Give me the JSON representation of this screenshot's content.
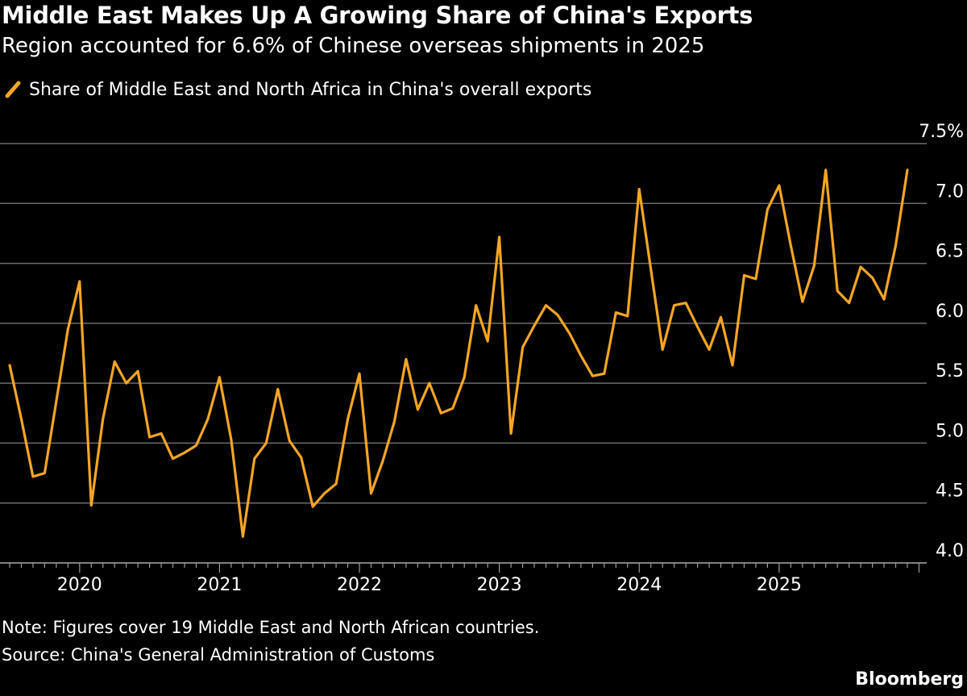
{
  "header": {
    "title": "Middle East Makes Up A Growing Share of China's Exports",
    "subtitle": "Region accounted for 6.6% of Chinese overseas shipments in 2025"
  },
  "legend": {
    "label": "Share of Middle East and North Africa in China's overall exports"
  },
  "footer": {
    "note": "Note: Figures cover 19 Middle East and North African countries.",
    "source": "Source: China's General Administration of Customs",
    "brand": "Bloomberg"
  },
  "colors": {
    "background": "#000000",
    "line": "#f5a623",
    "grid": "#6b6b6b",
    "text": "#ffffff"
  },
  "chart_data": {
    "type": "line",
    "y_tick_labels": [
      "7.5%",
      "7.0",
      "6.5",
      "6.0",
      "5.5",
      "5.0",
      "4.5",
      "4.0"
    ],
    "y_ticks": [
      7.5,
      7.0,
      6.5,
      6.0,
      5.5,
      5.0,
      4.5,
      4.0
    ],
    "x_tick_labels": [
      "2020",
      "2021",
      "2022",
      "2023",
      "2024",
      "2025"
    ],
    "ylim": [
      4.0,
      7.5
    ],
    "grid": true,
    "legend_placement": "top-left",
    "series": [
      {
        "name": "Share of Middle East and North Africa in China's overall exports",
        "points": [
          [
            "2019-07",
            5.65
          ],
          [
            "2019-08",
            5.2
          ],
          [
            "2019-09",
            4.72
          ],
          [
            "2019-10",
            4.75
          ],
          [
            "2019-11",
            5.35
          ],
          [
            "2019-12",
            5.95
          ],
          [
            "2020-01",
            6.35
          ],
          [
            "2020-02",
            4.48
          ],
          [
            "2020-03",
            5.2
          ],
          [
            "2020-04",
            5.68
          ],
          [
            "2020-05",
            5.5
          ],
          [
            "2020-06",
            5.6
          ],
          [
            "2020-07",
            5.05
          ],
          [
            "2020-08",
            5.08
          ],
          [
            "2020-09",
            4.87
          ],
          [
            "2020-10",
            4.92
          ],
          [
            "2020-11",
            4.98
          ],
          [
            "2020-12",
            5.2
          ],
          [
            "2021-01",
            5.55
          ],
          [
            "2021-02",
            5.03
          ],
          [
            "2021-03",
            4.22
          ],
          [
            "2021-04",
            4.87
          ],
          [
            "2021-05",
            5.0
          ],
          [
            "2021-06",
            5.45
          ],
          [
            "2021-07",
            5.02
          ],
          [
            "2021-08",
            4.88
          ],
          [
            "2021-09",
            4.47
          ],
          [
            "2021-10",
            4.58
          ],
          [
            "2021-11",
            4.66
          ],
          [
            "2021-12",
            5.2
          ],
          [
            "2022-01",
            5.58
          ],
          [
            "2022-02",
            4.58
          ],
          [
            "2022-03",
            4.85
          ],
          [
            "2022-04",
            5.18
          ],
          [
            "2022-05",
            5.7
          ],
          [
            "2022-06",
            5.28
          ],
          [
            "2022-07",
            5.5
          ],
          [
            "2022-08",
            5.25
          ],
          [
            "2022-09",
            5.29
          ],
          [
            "2022-10",
            5.55
          ],
          [
            "2022-11",
            6.15
          ],
          [
            "2022-12",
            5.85
          ],
          [
            "2023-01",
            6.72
          ],
          [
            "2023-02",
            5.08
          ],
          [
            "2023-03",
            5.8
          ],
          [
            "2023-04",
            5.98
          ],
          [
            "2023-05",
            6.15
          ],
          [
            "2023-06",
            6.07
          ],
          [
            "2023-07",
            5.92
          ],
          [
            "2023-08",
            5.73
          ],
          [
            "2023-09",
            5.56
          ],
          [
            "2023-10",
            5.58
          ],
          [
            "2023-11",
            6.09
          ],
          [
            "2023-12",
            6.06
          ],
          [
            "2024-01",
            7.12
          ],
          [
            "2024-02",
            6.45
          ],
          [
            "2024-03",
            5.78
          ],
          [
            "2024-04",
            6.15
          ],
          [
            "2024-05",
            6.17
          ],
          [
            "2024-06",
            5.97
          ],
          [
            "2024-07",
            5.78
          ],
          [
            "2024-08",
            6.05
          ],
          [
            "2024-09",
            5.65
          ],
          [
            "2024-10",
            6.4
          ],
          [
            "2024-11",
            6.37
          ],
          [
            "2024-12",
            6.95
          ],
          [
            "2025-01",
            7.15
          ],
          [
            "2025-02",
            6.65
          ],
          [
            "2025-03",
            6.18
          ],
          [
            "2025-04",
            6.48
          ],
          [
            "2025-05",
            7.28
          ],
          [
            "2025-06",
            6.27
          ],
          [
            "2025-07",
            6.17
          ],
          [
            "2025-08",
            6.47
          ],
          [
            "2025-09",
            6.38
          ],
          [
            "2025-10",
            6.2
          ],
          [
            "2025-11",
            6.65
          ],
          [
            "2025-12",
            7.28
          ]
        ]
      }
    ]
  }
}
